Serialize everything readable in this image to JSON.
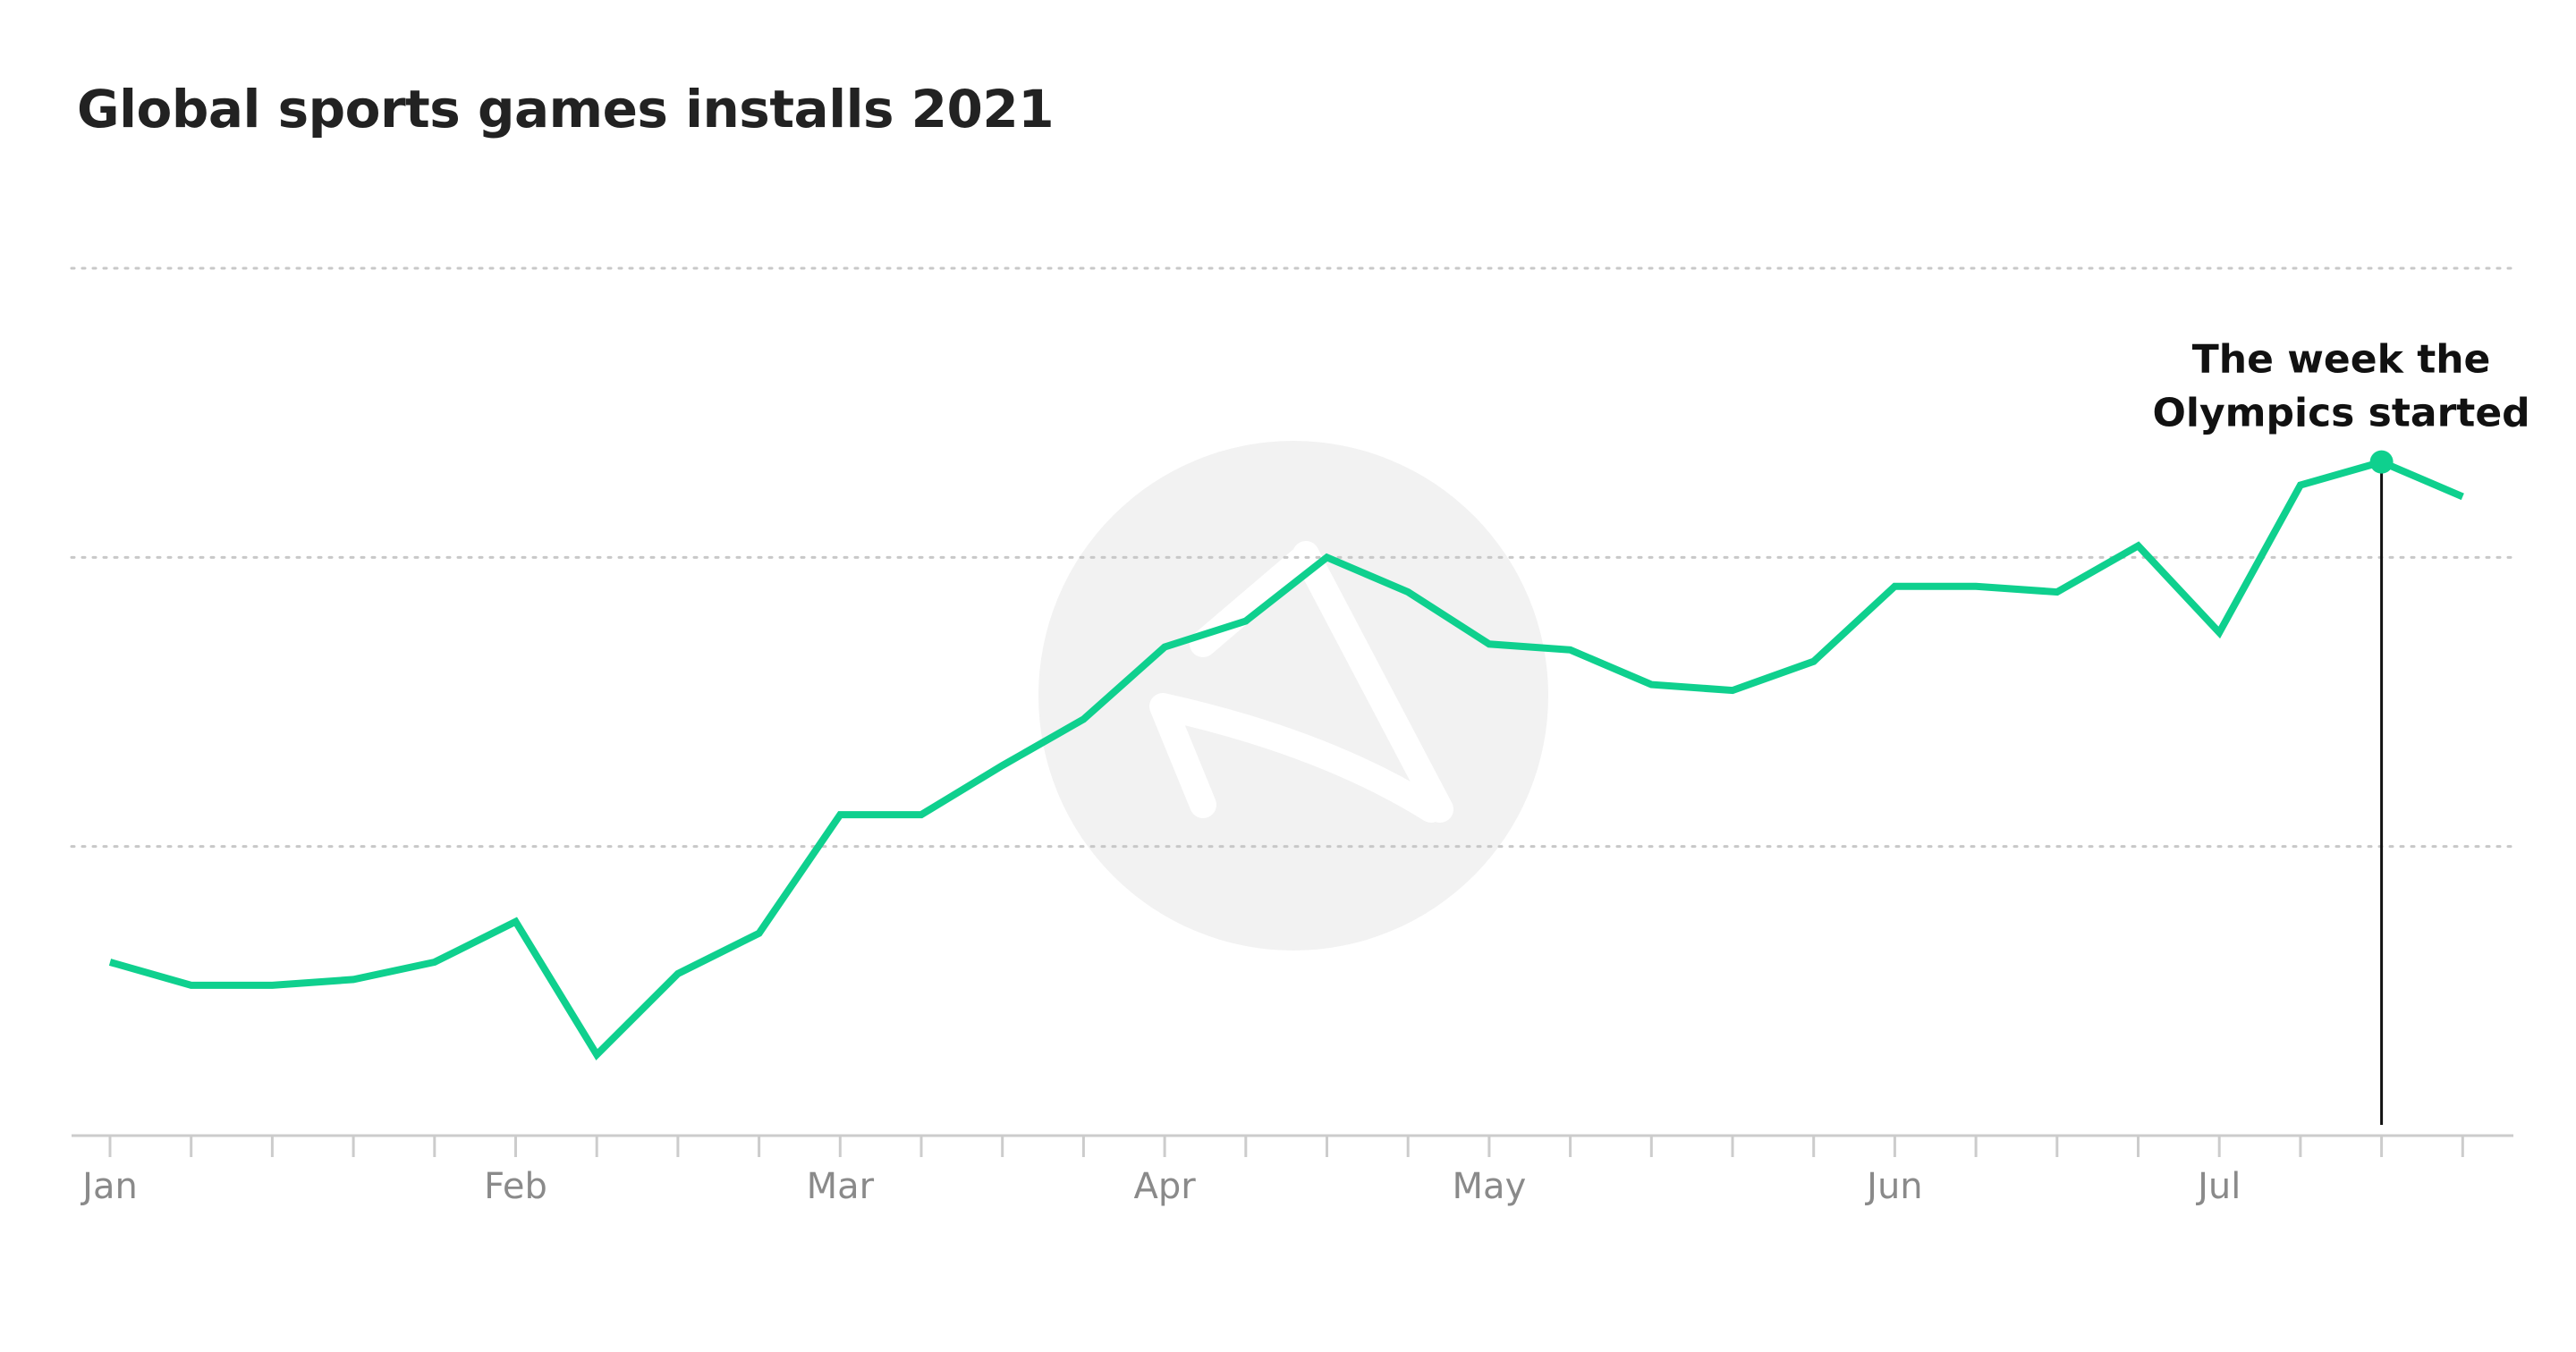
{
  "chart_data": {
    "type": "line",
    "title": "Global sports games installs 2021",
    "xlabel": "",
    "ylabel": "",
    "ylim": [
      0,
      300
    ],
    "gridlines": [
      100,
      200,
      300
    ],
    "y_tick_labels_shown": false,
    "x_tick_labels": [
      "Jan",
      "Feb",
      "Mar",
      "Apr",
      "May",
      "Jun",
      "Jul"
    ],
    "series": [
      {
        "color": "#0fd08e",
        "values": [
          60,
          52,
          52,
          54,
          60,
          74,
          28,
          56,
          70,
          111,
          111,
          128,
          144,
          169,
          178,
          200,
          188,
          170,
          168,
          156,
          154,
          164,
          190,
          190,
          188,
          204,
          174,
          225,
          233,
          221
        ]
      }
    ],
    "week_label_index": {
      "Jan": 0,
      "Feb": 5,
      "Mar": 9,
      "Apr": 13,
      "May": 17,
      "Jun": 22,
      "Jul": 26
    },
    "annotation": {
      "lines": [
        "The week the",
        "Olympics started"
      ],
      "point_index": 28
    },
    "colors": {
      "line": "#0fd08e",
      "grid": "#c8c8c8",
      "axis": "#cccccc",
      "tick_label": "#8a8a8a",
      "annotation": "#111111",
      "watermark": "#f2f2f2"
    },
    "watermark": {
      "icon": "brand-logo-watermark"
    }
  }
}
